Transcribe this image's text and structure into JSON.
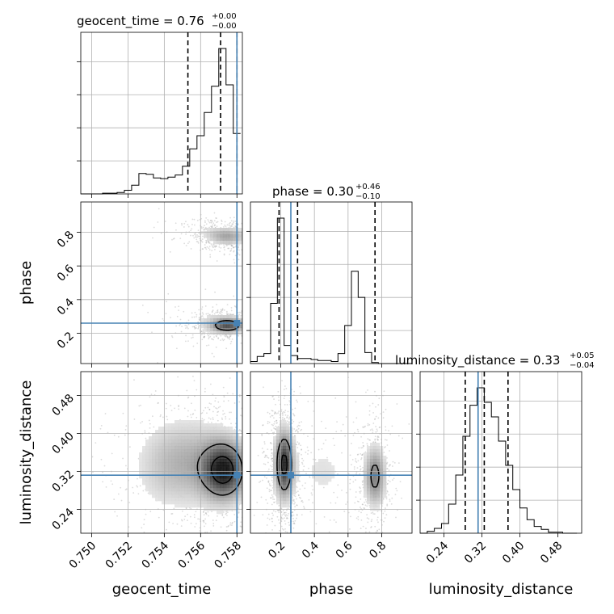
{
  "chart_data": {
    "type": "corner",
    "parameters": [
      "geocent_time",
      "phase",
      "luminosity_distance"
    ],
    "truth": {
      "geocent_time": 0.758,
      "phase": 0.26,
      "luminosity_distance": 0.312
    },
    "truth_color": "#4682b4",
    "ranges": {
      "geocent_time": [
        0.7494,
        0.7583
      ],
      "phase": [
        0.02,
        0.98
      ],
      "luminosity_distance": [
        0.19,
        0.53
      ]
    },
    "ticks": {
      "geocent_time": [
        "0.750",
        "0.752",
        "0.754",
        "0.756",
        "0.758"
      ],
      "phase": [
        "0.2",
        "0.4",
        "0.6",
        "0.8"
      ],
      "luminosity_distance": [
        "0.24",
        "0.32",
        "0.40",
        "0.48"
      ]
    },
    "titles": [
      {
        "param": "geocent_time",
        "text": "geocent_time = 0.76",
        "plus": "+0.00",
        "minus": "−0.00"
      },
      {
        "param": "phase",
        "text": "phase = 0.30",
        "plus": "+0.46",
        "minus": "−0.10"
      },
      {
        "param": "luminosity_distance",
        "text": "luminosity_distance = 0.33",
        "plus": "+0.05",
        "minus": "−0.04"
      }
    ],
    "quantiles": {
      "geocent_time": [
        0.7553,
        0.7571,
        0.758
      ],
      "phase": [
        0.19,
        0.3,
        0.76
      ],
      "luminosity_distance": [
        0.285,
        0.325,
        0.375
      ]
    },
    "histograms": {
      "geocent_time": {
        "edges": [
          0.7494,
          0.7498,
          0.7502,
          0.7506,
          0.751,
          0.7514,
          0.7518,
          0.7522,
          0.7526,
          0.753,
          0.7534,
          0.7538,
          0.7542,
          0.7546,
          0.755,
          0.7554,
          0.7558,
          0.7562,
          0.7566,
          0.757,
          0.7574,
          0.7578,
          0.7582
        ],
        "counts": [
          0,
          0,
          0,
          1,
          1,
          2,
          5,
          12,
          28,
          27,
          22,
          21,
          23,
          26,
          38,
          62,
          80,
          112,
          148,
          200,
          150,
          83
        ]
      },
      "phase": {
        "edges": [
          0.02,
          0.06,
          0.1,
          0.14,
          0.18,
          0.22,
          0.26,
          0.3,
          0.34,
          0.38,
          0.42,
          0.46,
          0.5,
          0.54,
          0.58,
          0.62,
          0.66,
          0.7,
          0.74,
          0.78,
          0.82,
          0.86,
          0.9,
          0.94,
          0.98
        ],
        "counts": [
          2,
          7,
          10,
          60,
          145,
          18,
          8,
          5,
          5,
          4,
          3,
          3,
          2,
          10,
          38,
          92,
          66,
          11,
          1,
          0,
          0,
          0,
          0,
          0
        ]
      },
      "luminosity_distance": {
        "edges": [
          0.19,
          0.205,
          0.22,
          0.235,
          0.25,
          0.265,
          0.28,
          0.295,
          0.31,
          0.325,
          0.34,
          0.355,
          0.37,
          0.385,
          0.4,
          0.415,
          0.43,
          0.445,
          0.46,
          0.475,
          0.49,
          0.505,
          0.52
        ],
        "counts": [
          0,
          2,
          5,
          10,
          30,
          60,
          100,
          132,
          150,
          135,
          120,
          95,
          70,
          45,
          26,
          14,
          7,
          4,
          1,
          1,
          0,
          0
        ]
      }
    },
    "contour_levels": [
      0.5,
      0.9,
      1.35,
      1.8
    ],
    "density_components": {
      "phase_vs_geocent_time": [
        {
          "w": 0.75,
          "x": 0.7575,
          "y": 0.245,
          "sx": 0.0006,
          "sy": 0.026
        },
        {
          "w": 0.35,
          "x": 0.7575,
          "y": 0.77,
          "sx": 0.0007,
          "sy": 0.03
        },
        {
          "w": 0.15,
          "x": 0.757,
          "y": 0.8,
          "sx": 0.001,
          "sy": 0.03
        },
        {
          "w": 0.14,
          "x": 0.7568,
          "y": 0.27,
          "sx": 0.0012,
          "sy": 0.05
        }
      ],
      "luminosity_distance_vs_geocent_time": [
        {
          "w": 1.0,
          "x": 0.7573,
          "y": 0.322,
          "sx": 0.0008,
          "sy": 0.04
        },
        {
          "w": 0.3,
          "x": 0.7555,
          "y": 0.34,
          "sx": 0.0014,
          "sy": 0.06
        },
        {
          "w": 0.14,
          "x": 0.7538,
          "y": 0.33,
          "sx": 0.0012,
          "sy": 0.06
        }
      ],
      "luminosity_distance_vs_phase": [
        {
          "w": 1.0,
          "x": 0.22,
          "y": 0.335,
          "sx": 0.035,
          "sy": 0.045
        },
        {
          "w": 0.6,
          "x": 0.76,
          "y": 0.31,
          "sx": 0.04,
          "sy": 0.04
        },
        {
          "w": 0.14,
          "x": 0.45,
          "y": 0.32,
          "sx": 0.12,
          "sy": 0.05
        }
      ]
    },
    "grid": true
  }
}
